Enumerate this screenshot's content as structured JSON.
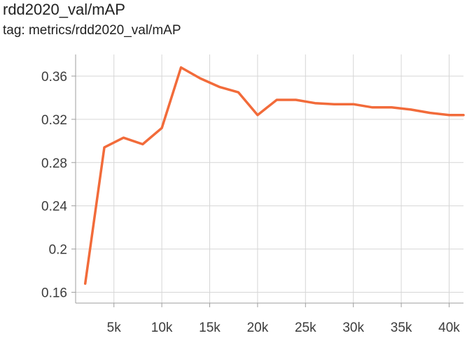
{
  "header": {
    "title": "rdd2020_val/mAP",
    "tag": "tag: metrics/rdd2020_val/mAP"
  },
  "colors": {
    "series": "#f26b3a",
    "grid": "#d6d6d6",
    "text": "#212121"
  },
  "chart_data": {
    "type": "line",
    "title": "rdd2020_val/mAP",
    "xlabel": "",
    "ylabel": "",
    "grid": true,
    "xlim": [
      1000,
      41500
    ],
    "ylim": [
      0.15,
      0.38
    ],
    "x_ticks": [
      5000,
      10000,
      15000,
      20000,
      25000,
      30000,
      35000,
      40000
    ],
    "x_tick_labels": [
      "5k",
      "10k",
      "15k",
      "20k",
      "25k",
      "30k",
      "35k",
      "40k"
    ],
    "y_ticks": [
      0.16,
      0.2,
      0.24,
      0.28,
      0.32,
      0.36
    ],
    "y_tick_labels": [
      "0.16",
      "0.2",
      "0.24",
      "0.28",
      "0.32",
      "0.36"
    ],
    "series": [
      {
        "x": [
          2000,
          4000,
          6000,
          8000,
          10000,
          12000,
          14000,
          16000,
          18000,
          20000,
          22000,
          24000,
          26000,
          28000,
          30000,
          32000,
          34000,
          36000,
          38000,
          40000,
          41500
        ],
        "values": [
          0.168,
          0.294,
          0.303,
          0.297,
          0.312,
          0.368,
          0.358,
          0.35,
          0.345,
          0.324,
          0.338,
          0.338,
          0.335,
          0.334,
          0.334,
          0.331,
          0.331,
          0.329,
          0.326,
          0.324,
          0.324
        ]
      }
    ]
  }
}
